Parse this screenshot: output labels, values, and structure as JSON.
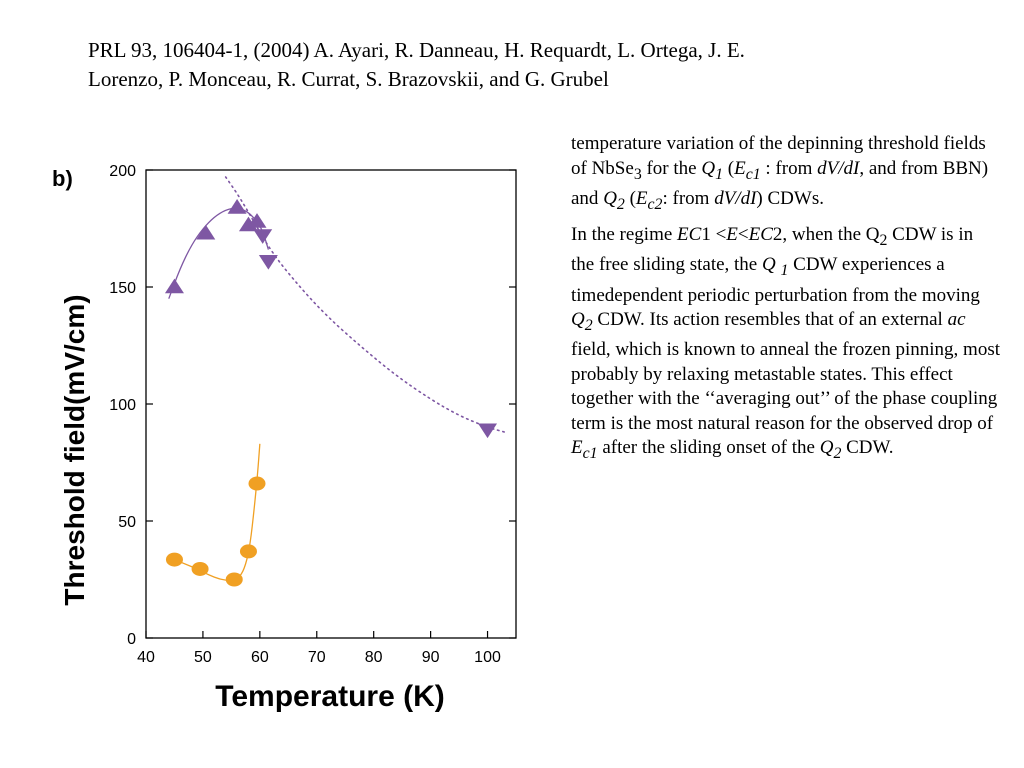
{
  "citation": {
    "line1": "PRL 93, 106404-1, (2004) A. Ayari, R. Danneau, H. Requardt, L. Ortega, J. E.",
    "line2": "Lorenzo, P. Monceau, R. Currat, S. Brazovskii, and G. Grubel"
  },
  "chart_data": {
    "type": "scatter",
    "panel_label": "b)",
    "xlabel": "Temperature (K)",
    "ylabel": "Threshold field(mV/cm)",
    "xlim": [
      40,
      105
    ],
    "ylim": [
      0,
      200
    ],
    "x_ticks": [
      40,
      50,
      60,
      70,
      80,
      90,
      100
    ],
    "y_ticks": [
      0,
      50,
      100,
      150,
      200
    ],
    "grid": false,
    "series": [
      {
        "marker": "triangle-up",
        "color": "#7e57a3",
        "points": [
          [
            45,
            150
          ],
          [
            50.5,
            173
          ],
          [
            56,
            184
          ],
          [
            58,
            176.5
          ],
          [
            59.5,
            178
          ]
        ]
      },
      {
        "marker": "triangle-down",
        "color": "#7e57a3",
        "points": [
          [
            60.5,
            172
          ],
          [
            61.5,
            161
          ],
          [
            100,
            89
          ]
        ]
      },
      {
        "marker": "circle",
        "color": "#f0a023",
        "points": [
          [
            45,
            33.5
          ],
          [
            49.5,
            29.5
          ],
          [
            55.5,
            25
          ],
          [
            58,
            37
          ],
          [
            59.5,
            66
          ]
        ]
      }
    ],
    "fit_curves": [
      {
        "color": "#7e57a3",
        "style": "solid",
        "points": [
          [
            44,
            145
          ],
          [
            46,
            158
          ],
          [
            48,
            168
          ],
          [
            50,
            175
          ],
          [
            52,
            180
          ],
          [
            54,
            183
          ],
          [
            56,
            184
          ],
          [
            58,
            182
          ],
          [
            59.5,
            178
          ],
          [
            60.5,
            174
          ],
          [
            61.5,
            166
          ]
        ]
      },
      {
        "color": "#7e57a3",
        "style": "dotted",
        "points": [
          [
            54,
            197
          ],
          [
            56,
            190
          ],
          [
            58,
            182
          ],
          [
            62,
            165
          ],
          [
            67,
            150
          ],
          [
            72,
            137
          ],
          [
            78,
            124
          ],
          [
            84,
            112
          ],
          [
            90,
            102
          ],
          [
            95,
            95
          ],
          [
            100,
            90
          ],
          [
            103,
            88
          ]
        ]
      },
      {
        "color": "#f0a023",
        "style": "solid",
        "points": [
          [
            45,
            33.5
          ],
          [
            47,
            31.5
          ],
          [
            49,
            29.5
          ],
          [
            51,
            27
          ],
          [
            53,
            25
          ],
          [
            55,
            24.5
          ],
          [
            56.5,
            26
          ],
          [
            57.5,
            31
          ],
          [
            58.3,
            40
          ],
          [
            59,
            55
          ],
          [
            59.6,
            70
          ],
          [
            60,
            83
          ]
        ]
      }
    ]
  },
  "text": {
    "p1": {
      "a": "temperature variation of the depinning threshold fields of NbSe",
      "a_sub": "3",
      "b": " for the ",
      "q1": "Q",
      "q1_sub": "1",
      "c": " (",
      "ec1": "E",
      "ec1_sub": "c1",
      "d": " : from ",
      "dvdi1": "dV/dI",
      "e": ", and from BBN) and ",
      "q2": "Q",
      "q2_sub": "2",
      "f": " (",
      "ec2": "E",
      "ec2_sub": "c2",
      "g": ": from ",
      "dvdi2": "dV/dI",
      "h": ") CDWs."
    },
    "p2": {
      "a": "In the regime ",
      "ec1": "EC",
      "b": "1 <",
      "e": "E",
      "c": "<",
      "ec2": "EC",
      "d": "2, when the Q",
      "d_sub": "2",
      "e2": " CDW is in the free sliding state, the ",
      "q1": "Q ",
      "q1_sub": "1",
      "f": " CDW experiences a timedependent periodic perturbation from the moving ",
      "q2": "Q",
      "q2_sub": "2",
      "g": " CDW. Its action resembles that of an external ",
      "ac": "ac",
      "h": " field, which is known to anneal the frozen pinning, most probably by relaxing metastable states. This effect together with the ‘‘averaging out’’ of the phase coupling term is the most natural reason for the observed drop of ",
      "ec1b": "E",
      "ec1b_sub": "c1",
      "i": " after the sliding onset of the ",
      "q2b": "Q",
      "q2b_sub": "2",
      "j": " CDW."
    }
  }
}
